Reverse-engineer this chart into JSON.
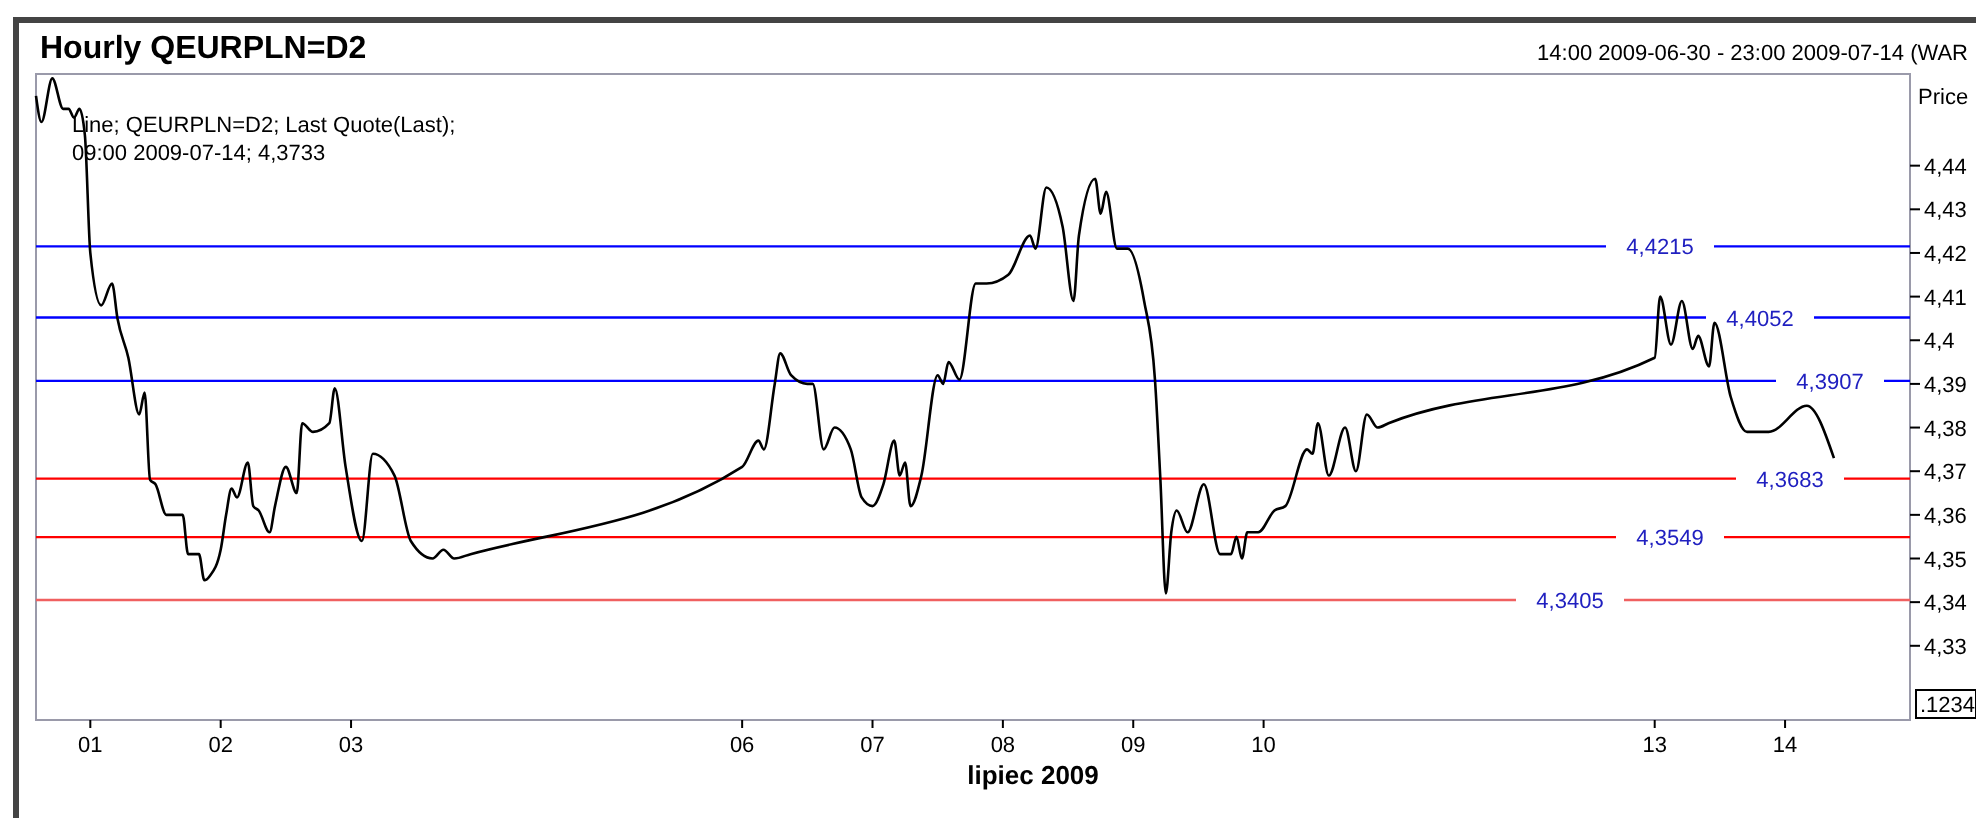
{
  "chart_data": {
    "type": "line",
    "title": "Hourly QEURPLN=D2",
    "subtitle": "14:00 2009-06-30 - 23:00 2009-07-14 (WAR",
    "xlabel": "lipiec 2009",
    "ylabel": "Price",
    "annotations": [
      "Line; QEURPLN=D2; Last Quote(Last);",
      "09:00 2009-07-14; 4,3733",
      ".1234"
    ],
    "xlim": [
      "2009-06-30T14:00",
      "2009-07-14T23:00"
    ],
    "ylim": [
      4.313,
      4.461
    ],
    "xticks": [
      {
        "value": "2009-07-01",
        "label": "01"
      },
      {
        "value": "2009-07-02",
        "label": "02"
      },
      {
        "value": "2009-07-03",
        "label": "03"
      },
      {
        "value": "2009-07-06",
        "label": "06"
      },
      {
        "value": "2009-07-07",
        "label": "07"
      },
      {
        "value": "2009-07-08",
        "label": "08"
      },
      {
        "value": "2009-07-09",
        "label": "09"
      },
      {
        "value": "2009-07-10",
        "label": "10"
      },
      {
        "value": "2009-07-13",
        "label": "13"
      },
      {
        "value": "2009-07-14",
        "label": "14"
      }
    ],
    "yticks": [
      {
        "value": 4.33,
        "label": "4,33"
      },
      {
        "value": 4.34,
        "label": "4,34"
      },
      {
        "value": 4.35,
        "label": "4,35"
      },
      {
        "value": 4.36,
        "label": "4,36"
      },
      {
        "value": 4.37,
        "label": "4,37"
      },
      {
        "value": 4.38,
        "label": "4,38"
      },
      {
        "value": 4.39,
        "label": "4,39"
      },
      {
        "value": 4.4,
        "label": "4,4"
      },
      {
        "value": 4.41,
        "label": "4,41"
      },
      {
        "value": 4.42,
        "label": "4,42"
      },
      {
        "value": 4.43,
        "label": "4,43"
      },
      {
        "value": 4.44,
        "label": "4,44"
      }
    ],
    "grid": false,
    "marker": "none",
    "line_style": "solid",
    "ref_lines": [
      {
        "axis": "y",
        "value": 4.4215,
        "label": "4,4215",
        "color": "#0000ff"
      },
      {
        "axis": "y",
        "value": 4.4052,
        "label": "4,4052",
        "color": "#0000ff"
      },
      {
        "axis": "y",
        "value": 4.3907,
        "label": "4,3907",
        "color": "#0000ff"
      },
      {
        "axis": "y",
        "value": 4.3683,
        "label": "4,3683",
        "color": "#ff0000"
      },
      {
        "axis": "y",
        "value": 4.3549,
        "label": "4,3549",
        "color": "#ff0000"
      },
      {
        "axis": "y",
        "value": 4.3405,
        "label": "4,3405",
        "color": "#f06060"
      }
    ],
    "series": [
      {
        "color": "#000000",
        "x": [
          "2009-06-30T14:00",
          "2009-06-30T15:00",
          "2009-06-30T17:00",
          "2009-06-30T19:00",
          "2009-06-30T20:00",
          "2009-06-30T21:00",
          "2009-06-30T22:00",
          "2009-06-30T23:00",
          "2009-07-01T00:00",
          "2009-07-01T02:00",
          "2009-07-01T04:00",
          "2009-07-01T05:00",
          "2009-07-01T07:00",
          "2009-07-01T09:00",
          "2009-07-01T10:00",
          "2009-07-01T11:00",
          "2009-07-01T12:00",
          "2009-07-01T14:00",
          "2009-07-01T17:00",
          "2009-07-01T18:00",
          "2009-07-01T20:00",
          "2009-07-01T21:00",
          "2009-07-01T22:00",
          "2009-07-02T00:00",
          "2009-07-02T01:00",
          "2009-07-02T02:00",
          "2009-07-02T03:00",
          "2009-07-02T05:00",
          "2009-07-02T06:00",
          "2009-07-02T07:00",
          "2009-07-02T09:00",
          "2009-07-02T10:00",
          "2009-07-02T12:00",
          "2009-07-02T14:00",
          "2009-07-02T15:00",
          "2009-07-02T17:00",
          "2009-07-02T20:00",
          "2009-07-02T21:00",
          "2009-07-02T23:00",
          "2009-07-03T02:00",
          "2009-07-03T04:00",
          "2009-07-03T08:00",
          "2009-07-03T11:00",
          "2009-07-03T15:00",
          "2009-07-03T17:00",
          "2009-07-03T19:00",
          "2009-07-03T22:00",
          "2009-07-06T00:00",
          "2009-07-06T03:00",
          "2009-07-06T04:00",
          "2009-07-06T06:00",
          "2009-07-06T07:00",
          "2009-07-06T09:00",
          "2009-07-06T12:00",
          "2009-07-06T13:00",
          "2009-07-06T15:00",
          "2009-07-06T17:00",
          "2009-07-06T20:00",
          "2009-07-06T22:00",
          "2009-07-07T00:00",
          "2009-07-07T02:00",
          "2009-07-07T04:00",
          "2009-07-07T05:00",
          "2009-07-07T06:00",
          "2009-07-07T07:00",
          "2009-07-07T09:00",
          "2009-07-07T12:00",
          "2009-07-07T13:00",
          "2009-07-07T14:00",
          "2009-07-07T16:00",
          "2009-07-07T19:00",
          "2009-07-07T21:00",
          "2009-07-08T01:00",
          "2009-07-08T05:00",
          "2009-07-08T06:00",
          "2009-07-08T08:00",
          "2009-07-08T11:00",
          "2009-07-08T13:00",
          "2009-07-08T14:00",
          "2009-07-08T17:00",
          "2009-07-08T18:00",
          "2009-07-08T19:00",
          "2009-07-08T21:00",
          "2009-07-08T23:00",
          "2009-07-09T02:00",
          "2009-07-09T04:00",
          "2009-07-09T05:00",
          "2009-07-09T06:00",
          "2009-07-09T07:00",
          "2009-07-09T08:00",
          "2009-07-09T10:00",
          "2009-07-09T13:00",
          "2009-07-09T16:00",
          "2009-07-09T18:00",
          "2009-07-09T19:00",
          "2009-07-09T20:00",
          "2009-07-09T21:00",
          "2009-07-09T23:00",
          "2009-07-10T02:00",
          "2009-07-10T04:00",
          "2009-07-10T08:00",
          "2009-07-10T09:00",
          "2009-07-10T10:00",
          "2009-07-10T12:00",
          "2009-07-10T15:00",
          "2009-07-10T17:00",
          "2009-07-10T19:00",
          "2009-07-10T21:00",
          "2009-07-10T23:00",
          "2009-07-13T00:00",
          "2009-07-13T01:00",
          "2009-07-13T03:00",
          "2009-07-13T05:00",
          "2009-07-13T07:00",
          "2009-07-13T08:00",
          "2009-07-13T10:00",
          "2009-07-13T11:00",
          "2009-07-13T14:00",
          "2009-07-13T17:00",
          "2009-07-13T21:00",
          "2009-07-14T04:00",
          "2009-07-14T09:00"
        ],
        "values": [
          4.456,
          4.45,
          4.46,
          4.453,
          4.453,
          4.451,
          4.453,
          4.447,
          4.42,
          4.408,
          4.413,
          4.405,
          4.396,
          4.383,
          4.388,
          4.368,
          4.367,
          4.36,
          4.36,
          4.351,
          4.351,
          4.345,
          4.346,
          4.352,
          4.36,
          4.366,
          4.364,
          4.372,
          4.362,
          4.361,
          4.356,
          4.362,
          4.371,
          4.365,
          4.381,
          4.379,
          4.381,
          4.389,
          4.371,
          4.354,
          4.374,
          4.369,
          4.354,
          4.35,
          4.352,
          4.35,
          4.351,
          4.371,
          4.377,
          4.375,
          4.39,
          4.397,
          4.392,
          4.39,
          4.39,
          4.375,
          4.38,
          4.375,
          4.364,
          4.362,
          4.367,
          4.377,
          4.369,
          4.372,
          4.362,
          4.369,
          4.392,
          4.39,
          4.395,
          4.391,
          4.413,
          4.413,
          4.415,
          4.424,
          4.421,
          4.435,
          4.426,
          4.409,
          4.424,
          4.437,
          4.429,
          4.434,
          4.421,
          4.421,
          4.409,
          4.391,
          4.368,
          4.342,
          4.356,
          4.361,
          4.356,
          4.367,
          4.351,
          4.351,
          4.355,
          4.35,
          4.356,
          4.356,
          4.361,
          4.362,
          4.375,
          4.374,
          4.381,
          4.369,
          4.38,
          4.37,
          4.383,
          4.38,
          4.381,
          4.396,
          4.41,
          4.399,
          4.409,
          4.398,
          4.401,
          4.394,
          4.404,
          4.387,
          4.379,
          4.379,
          4.385,
          4.373
        ]
      }
    ]
  }
}
